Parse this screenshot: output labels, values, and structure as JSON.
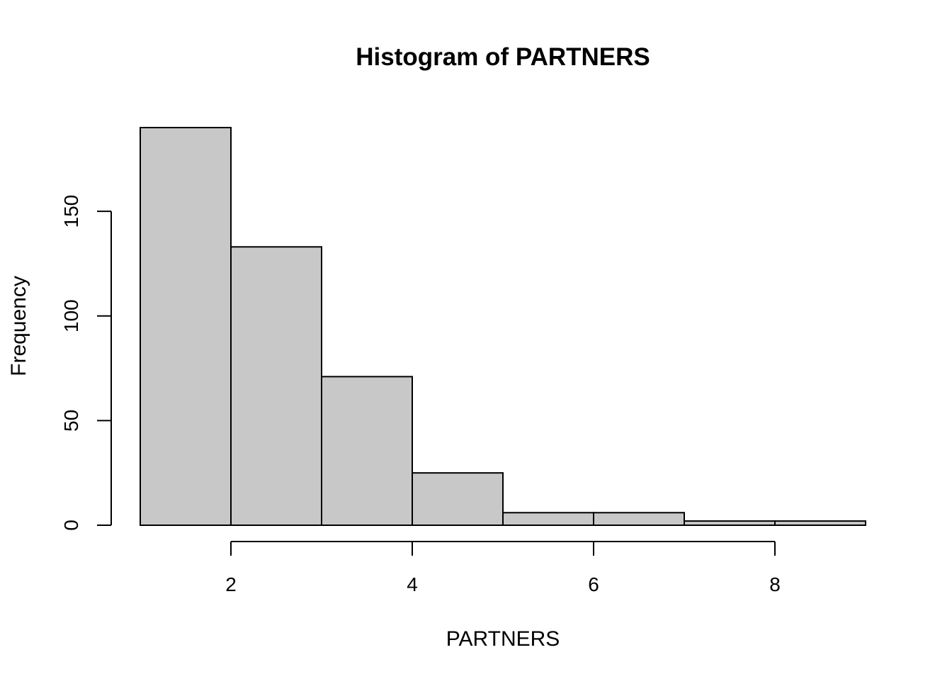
{
  "chart_data": {
    "type": "bar",
    "title": "Histogram of PARTNERS",
    "xlabel": "PARTNERS",
    "ylabel": "Frequency",
    "bins": [
      {
        "from": 1,
        "to": 2,
        "count": 190
      },
      {
        "from": 2,
        "to": 3,
        "count": 133
      },
      {
        "from": 3,
        "to": 4,
        "count": 71
      },
      {
        "from": 4,
        "to": 5,
        "count": 25
      },
      {
        "from": 5,
        "to": 6,
        "count": 6
      },
      {
        "from": 6,
        "to": 7,
        "count": 6
      },
      {
        "from": 7,
        "to": 8,
        "count": 2
      },
      {
        "from": 8,
        "to": 9,
        "count": 2
      }
    ],
    "x_ticks": [
      2,
      4,
      6,
      8
    ],
    "y_ticks": [
      0,
      50,
      100,
      150
    ],
    "xlim": [
      1,
      9
    ],
    "ylim": [
      0,
      190
    ],
    "bar_fill": "#c8c8c8",
    "bar_stroke": "#000000",
    "grid": false,
    "legend": "none"
  }
}
